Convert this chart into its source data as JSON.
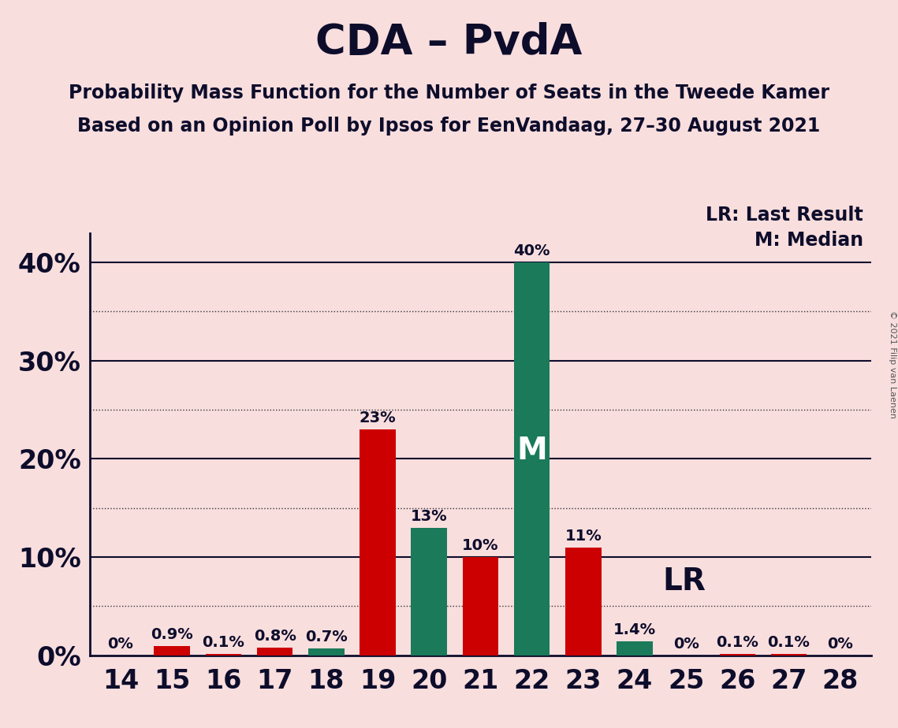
{
  "title": "CDA – PvdA",
  "subtitle1": "Probability Mass Function for the Number of Seats in the Tweede Kamer",
  "subtitle2": "Based on an Opinion Poll by Ipsos for EenVandaag, 27–30 August 2021",
  "copyright": "© 2021 Filip van Laenen",
  "legend_lr": "LR: Last Result",
  "legend_m": "M: Median",
  "background_color": "#f9dede",
  "cda_color": "#cc0000",
  "pvda_color": "#1a7a5a",
  "seats": [
    14,
    15,
    16,
    17,
    18,
    19,
    20,
    21,
    22,
    23,
    24,
    25,
    26,
    27,
    28
  ],
  "cda_values": [
    0.0,
    0.9,
    0.1,
    0.8,
    0.0,
    23.0,
    0.0,
    10.0,
    0.0,
    11.0,
    0.0,
    0.0,
    0.1,
    0.1,
    0.0
  ],
  "pvda_values": [
    0.0,
    0.0,
    0.0,
    0.0,
    0.7,
    0.0,
    13.0,
    0.0,
    40.0,
    0.0,
    1.4,
    0.0,
    0.0,
    0.0,
    0.0
  ],
  "cda_labels": [
    "0%",
    "0.9%",
    "0.1%",
    "0.8%",
    "",
    "23%",
    "",
    "10%",
    "",
    "11%",
    "",
    "0%",
    "0.1%",
    "0.1%",
    "0%"
  ],
  "pvda_labels": [
    "",
    "",
    "",
    "",
    "0.7%",
    "",
    "13%",
    "",
    "40%",
    "",
    "1.4%",
    "",
    "",
    "",
    ""
  ],
  "median_seat": 22,
  "lr_seat": 24,
  "ylim_max": 43,
  "yticks": [
    0,
    10,
    20,
    30,
    40
  ],
  "bar_width": 0.7,
  "title_fontsize": 38,
  "subtitle_fontsize": 17,
  "label_fontsize": 14,
  "tick_fontsize": 24,
  "annotation_fontsize": 28,
  "legend_fontsize": 17
}
